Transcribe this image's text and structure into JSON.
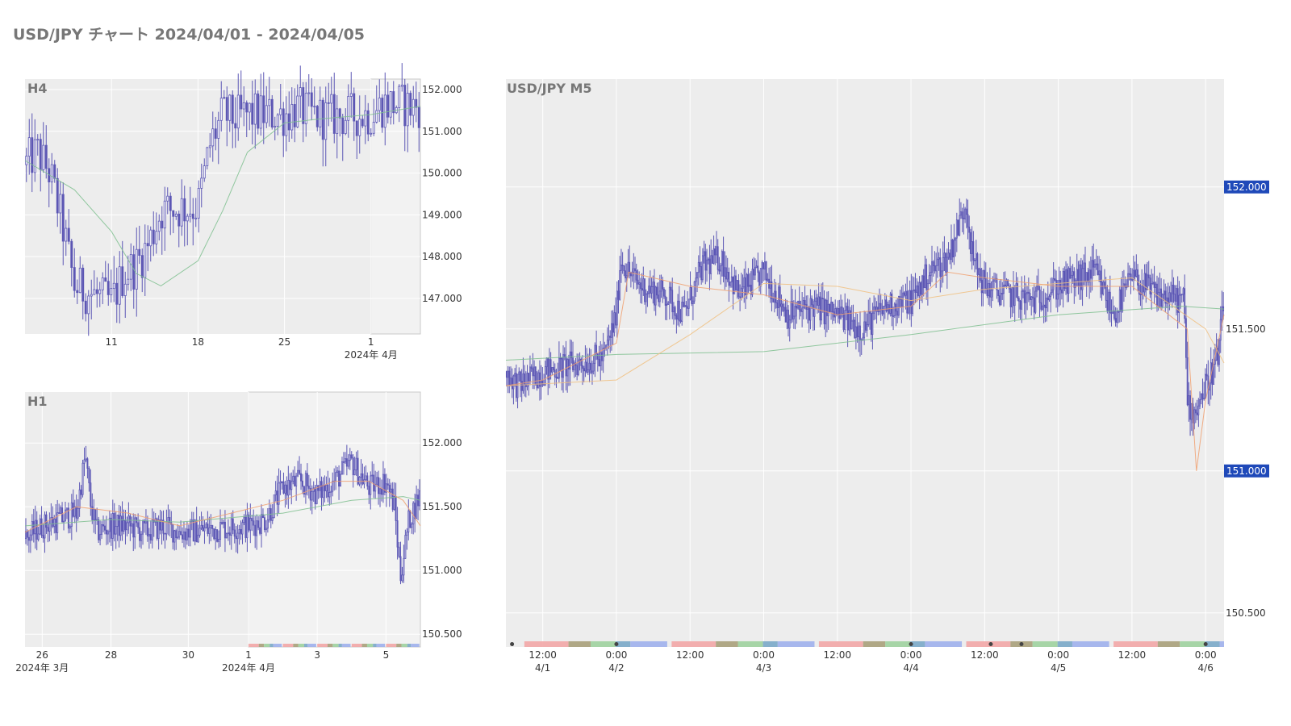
{
  "title": "USD/JPY チャート 2024/04/01 - 2024/04/05",
  "colors": {
    "candle": "#5c57b5",
    "ma_short": "#f0a070",
    "ma_long": "#7fbf8f",
    "panel_bg": "#ededed",
    "badge": "#1f49b9",
    "session_asia": "#f2a6a6",
    "session_overlap": "#a8a07a",
    "session_london": "#9fd29f",
    "session_ny": "#9fb0ec"
  },
  "chart_data": [
    {
      "id": "h4",
      "type": "candlestick",
      "label": "H4",
      "title": "",
      "xlabel": "",
      "ylabel": "",
      "x_range": [
        "2024-03-04",
        "2024-04-05"
      ],
      "ylim": [
        146.15,
        152.25
      ],
      "yticks": [
        "152.000",
        "151.000",
        "150.000",
        "149.000",
        "148.000",
        "147.000"
      ],
      "xticks": [
        {
          "date": "2024-03-11",
          "label": "11",
          "sub": ""
        },
        {
          "date": "2024-03-18",
          "label": "18",
          "sub": ""
        },
        {
          "date": "2024-03-25",
          "label": "25",
          "sub": ""
        },
        {
          "date": "2024-04-01",
          "label": "1",
          "sub": "2024年 4月"
        }
      ],
      "highlight_range": [
        "2024-04-01",
        "2024-04-05"
      ],
      "price_path": [
        [
          "2024-03-04",
          150.2
        ],
        [
          "2024-03-05",
          150.5
        ],
        [
          "2024-03-06",
          150.0
        ],
        [
          "2024-03-07",
          148.8
        ],
        [
          "2024-03-08",
          147.3
        ],
        [
          "2024-03-11",
          146.9
        ],
        [
          "2024-03-12",
          147.6
        ],
        [
          "2024-03-13",
          147.8
        ],
        [
          "2024-03-14",
          148.3
        ],
        [
          "2024-03-15",
          149.1
        ],
        [
          "2024-03-18",
          149.2
        ],
        [
          "2024-03-19",
          150.7
        ],
        [
          "2024-03-20",
          151.4
        ],
        [
          "2024-03-21",
          151.3
        ],
        [
          "2024-03-22",
          151.4
        ],
        [
          "2024-03-25",
          151.4
        ],
        [
          "2024-03-26",
          151.55
        ],
        [
          "2024-03-27",
          151.4
        ],
        [
          "2024-03-28",
          151.35
        ],
        [
          "2024-03-29",
          151.35
        ],
        [
          "2024-04-01",
          151.4
        ],
        [
          "2024-04-02",
          151.65
        ],
        [
          "2024-04-03",
          151.65
        ],
        [
          "2024-04-04",
          151.6
        ],
        [
          "2024-04-05",
          151.6
        ]
      ],
      "ma_long_path": [
        [
          "2024-03-04",
          150.3
        ],
        [
          "2024-03-08",
          149.6
        ],
        [
          "2024-03-11",
          148.6
        ],
        [
          "2024-03-13",
          147.6
        ],
        [
          "2024-03-15",
          147.3
        ],
        [
          "2024-03-18",
          147.9
        ],
        [
          "2024-03-20",
          149.1
        ],
        [
          "2024-03-22",
          150.5
        ],
        [
          "2024-03-25",
          151.2
        ],
        [
          "2024-03-28",
          151.3
        ],
        [
          "2024-04-01",
          151.4
        ],
        [
          "2024-04-05",
          151.6
        ]
      ]
    },
    {
      "id": "h1",
      "type": "candlestick",
      "label": "H1",
      "title": "",
      "xlabel": "",
      "ylabel": "",
      "x_range": [
        "2024-03-25 12:00",
        "2024-04-06 00:00"
      ],
      "ylim": [
        150.4,
        152.4
      ],
      "yticks": [
        "152.000",
        "151.500",
        "151.000",
        "150.500"
      ],
      "xticks": [
        {
          "date": "2024-03-26",
          "label": "26",
          "sub": "2024年 3月"
        },
        {
          "date": "2024-03-28",
          "label": "28",
          "sub": ""
        },
        {
          "date": "2024-03-30 06:00",
          "label": "30",
          "sub": ""
        },
        {
          "date": "2024-04-01",
          "label": "1",
          "sub": "2024年 4月"
        },
        {
          "date": "2024-04-03",
          "label": "3",
          "sub": ""
        },
        {
          "date": "2024-04-05",
          "label": "5",
          "sub": ""
        }
      ],
      "highlight_range": [
        "2024-04-01",
        "2024-04-06 00:00"
      ],
      "price_path": [
        [
          "2024-03-25 12:00",
          151.25
        ],
        [
          "2024-03-26 00:00",
          151.35
        ],
        [
          "2024-03-26 12:00",
          151.4
        ],
        [
          "2024-03-27 00:00",
          151.45
        ],
        [
          "2024-03-27 06:00",
          151.9
        ],
        [
          "2024-03-27 10:00",
          151.5
        ],
        [
          "2024-03-27 14:00",
          151.3
        ],
        [
          "2024-03-28 00:00",
          151.35
        ],
        [
          "2024-03-28 12:00",
          151.35
        ],
        [
          "2024-03-29 00:00",
          151.3
        ],
        [
          "2024-03-29 12:00",
          151.35
        ],
        [
          "2024-03-30 00:00",
          151.3
        ],
        [
          "2024-04-01 00:00",
          151.35
        ],
        [
          "2024-04-01 12:00",
          151.4
        ],
        [
          "2024-04-02 00:00",
          151.65
        ],
        [
          "2024-04-02 12:00",
          151.7
        ],
        [
          "2024-04-03 00:00",
          151.6
        ],
        [
          "2024-04-03 12:00",
          151.7
        ],
        [
          "2024-04-04 00:00",
          151.85
        ],
        [
          "2024-04-04 12:00",
          151.65
        ],
        [
          "2024-04-05 00:00",
          151.7
        ],
        [
          "2024-04-05 06:00",
          151.5
        ],
        [
          "2024-04-05 10:00",
          150.95
        ],
        [
          "2024-04-05 16:00",
          151.4
        ],
        [
          "2024-04-06 00:00",
          151.6
        ]
      ],
      "ma_long_path": [
        [
          "2024-03-25 12:00",
          151.35
        ],
        [
          "2024-03-28 00:00",
          151.4
        ],
        [
          "2024-03-30 00:00",
          151.38
        ],
        [
          "2024-04-02 00:00",
          151.45
        ],
        [
          "2024-04-04 00:00",
          151.55
        ],
        [
          "2024-04-05 12:00",
          151.58
        ],
        [
          "2024-04-06 00:00",
          151.55
        ]
      ],
      "ma_short_path": [
        [
          "2024-03-25 12:00",
          151.3
        ],
        [
          "2024-03-27 00:00",
          151.5
        ],
        [
          "2024-03-28 12:00",
          151.45
        ],
        [
          "2024-03-30 00:00",
          151.35
        ],
        [
          "2024-04-02 00:00",
          151.55
        ],
        [
          "2024-04-03 12:00",
          151.7
        ],
        [
          "2024-04-04 12:00",
          151.7
        ],
        [
          "2024-04-05 12:00",
          151.55
        ],
        [
          "2024-04-06 00:00",
          151.35
        ]
      ]
    },
    {
      "id": "m5",
      "type": "candlestick",
      "label": "USD/JPY M5",
      "title": "",
      "xlabel": "",
      "ylabel": "",
      "x_range": [
        "2024-04-01 06:00",
        "2024-04-06 03:00"
      ],
      "ylim": [
        150.38,
        152.38
      ],
      "yticks": [
        "152.000",
        "151.500",
        "151.000",
        "150.500"
      ],
      "highlighted_yticks": [
        "152.000",
        "151.000"
      ],
      "xticks": [
        {
          "date": "2024-04-01 12:00",
          "label": "12:00",
          "sub": "4/1"
        },
        {
          "date": "2024-04-02 00:00",
          "label": "0:00",
          "sub": "4/2"
        },
        {
          "date": "2024-04-02 12:00",
          "label": "12:00",
          "sub": ""
        },
        {
          "date": "2024-04-03 00:00",
          "label": "0:00",
          "sub": "4/3"
        },
        {
          "date": "2024-04-03 12:00",
          "label": "12:00",
          "sub": ""
        },
        {
          "date": "2024-04-04 00:00",
          "label": "0:00",
          "sub": "4/4"
        },
        {
          "date": "2024-04-04 12:00",
          "label": "12:00",
          "sub": ""
        },
        {
          "date": "2024-04-05 00:00",
          "label": "0:00",
          "sub": "4/5"
        },
        {
          "date": "2024-04-05 12:00",
          "label": "12:00",
          "sub": ""
        },
        {
          "date": "2024-04-06 00:00",
          "label": "0:00",
          "sub": "4/6"
        }
      ],
      "price_path": [
        [
          "2024-04-01 06:00",
          151.35
        ],
        [
          "2024-04-01 08:00",
          151.3
        ],
        [
          "2024-04-01 12:00",
          151.35
        ],
        [
          "2024-04-01 18:00",
          151.38
        ],
        [
          "2024-04-01 22:00",
          151.4
        ],
        [
          "2024-04-02 00:00",
          151.55
        ],
        [
          "2024-04-02 00:40",
          151.75
        ],
        [
          "2024-04-02 02:00",
          151.7
        ],
        [
          "2024-04-02 04:00",
          151.65
        ],
        [
          "2024-04-02 08:00",
          151.62
        ],
        [
          "2024-04-02 11:00",
          151.55
        ],
        [
          "2024-04-02 14:00",
          151.72
        ],
        [
          "2024-04-02 17:00",
          151.75
        ],
        [
          "2024-04-02 20:00",
          151.62
        ],
        [
          "2024-04-03 00:00",
          151.7
        ],
        [
          "2024-04-03 04:00",
          151.55
        ],
        [
          "2024-04-03 08:00",
          151.58
        ],
        [
          "2024-04-03 12:00",
          151.55
        ],
        [
          "2024-04-03 16:00",
          151.5
        ],
        [
          "2024-04-03 20:00",
          151.58
        ],
        [
          "2024-04-04 00:00",
          151.6
        ],
        [
          "2024-04-04 03:00",
          151.7
        ],
        [
          "2024-04-04 06:00",
          151.75
        ],
        [
          "2024-04-04 09:00",
          151.95
        ],
        [
          "2024-04-04 10:00",
          151.75
        ],
        [
          "2024-04-04 12:00",
          151.65
        ],
        [
          "2024-04-04 16:00",
          151.62
        ],
        [
          "2024-04-04 20:00",
          151.6
        ],
        [
          "2024-04-05 00:00",
          151.65
        ],
        [
          "2024-04-05 06:00",
          151.7
        ],
        [
          "2024-04-05 09:00",
          151.55
        ],
        [
          "2024-04-05 12:00",
          151.68
        ],
        [
          "2024-04-05 16:00",
          151.62
        ],
        [
          "2024-04-05 20:30",
          151.6
        ],
        [
          "2024-04-05 21:00",
          151.25
        ],
        [
          "2024-04-05 22:00",
          151.2
        ],
        [
          "2024-04-06 00:00",
          151.3
        ],
        [
          "2024-04-06 02:00",
          151.4
        ],
        [
          "2024-04-06 03:00",
          151.6
        ]
      ],
      "ma_short_path": [
        [
          "2024-04-01 06:00",
          151.3
        ],
        [
          "2024-04-01 12:00",
          151.32
        ],
        [
          "2024-04-02 00:00",
          151.45
        ],
        [
          "2024-04-02 02:00",
          151.7
        ],
        [
          "2024-04-02 12:00",
          151.65
        ],
        [
          "2024-04-03 00:00",
          151.62
        ],
        [
          "2024-04-03 12:00",
          151.55
        ],
        [
          "2024-04-04 00:00",
          151.58
        ],
        [
          "2024-04-04 06:00",
          151.7
        ],
        [
          "2024-04-04 12:00",
          151.68
        ],
        [
          "2024-04-05 00:00",
          151.65
        ],
        [
          "2024-04-05 12:00",
          151.65
        ],
        [
          "2024-04-05 21:00",
          151.5
        ],
        [
          "2024-04-05 22:30",
          151.0
        ],
        [
          "2024-04-06 00:00",
          151.25
        ],
        [
          "2024-04-06 03:00",
          151.55
        ]
      ],
      "ma_mid_path": [
        [
          "2024-04-01 06:00",
          151.3
        ],
        [
          "2024-04-02 00:00",
          151.32
        ],
        [
          "2024-04-02 12:00",
          151.48
        ],
        [
          "2024-04-03 00:00",
          151.66
        ],
        [
          "2024-04-03 12:00",
          151.65
        ],
        [
          "2024-04-04 00:00",
          151.6
        ],
        [
          "2024-04-04 12:00",
          151.64
        ],
        [
          "2024-04-05 00:00",
          151.66
        ],
        [
          "2024-04-05 12:00",
          151.68
        ],
        [
          "2024-04-06 00:00",
          151.5
        ],
        [
          "2024-04-06 03:00",
          151.38
        ]
      ],
      "ma_long_path": [
        [
          "2024-04-01 06:00",
          151.39
        ],
        [
          "2024-04-02 00:00",
          151.41
        ],
        [
          "2024-04-03 00:00",
          151.42
        ],
        [
          "2024-04-04 00:00",
          151.48
        ],
        [
          "2024-04-05 00:00",
          151.55
        ],
        [
          "2024-04-05 20:00",
          151.58
        ],
        [
          "2024-04-06 03:00",
          151.57
        ]
      ]
    }
  ]
}
